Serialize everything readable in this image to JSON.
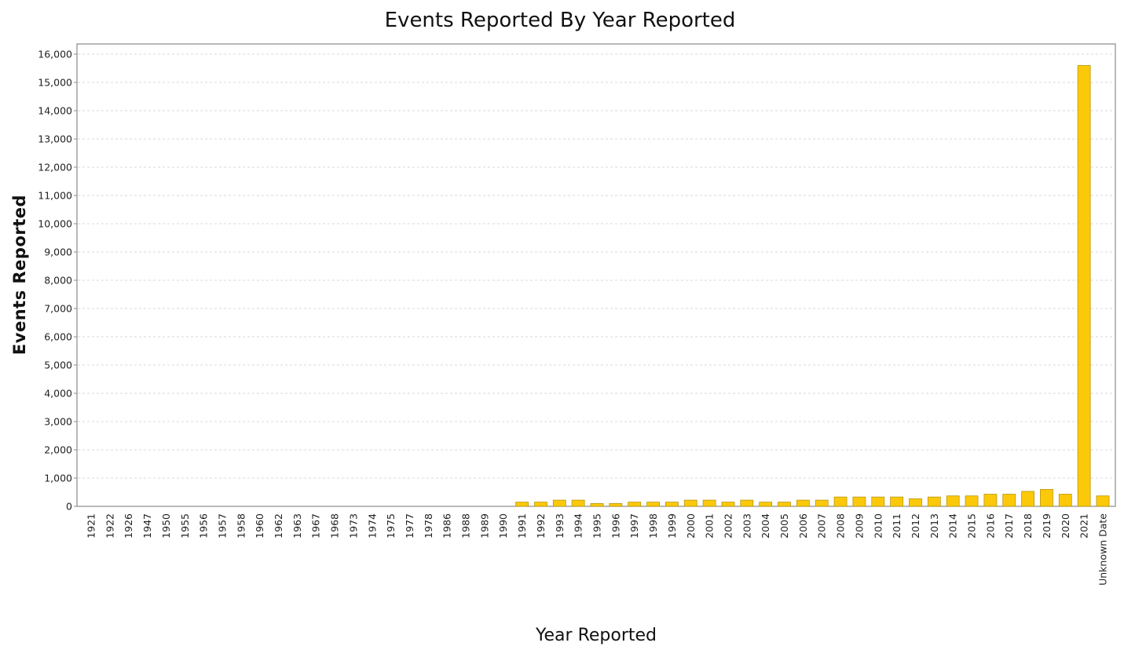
{
  "chart_data": {
    "type": "bar",
    "title": "Events Reported By Year Reported",
    "xlabel": "Year Reported",
    "ylabel": "Events Reported",
    "ylim": [
      0,
      16000
    ],
    "y_ticks": [
      "0",
      "1,000",
      "2,000",
      "3,000",
      "4,000",
      "5,000",
      "6,000",
      "7,000",
      "8,000",
      "9,000",
      "10,000",
      "11,000",
      "12,000",
      "13,000",
      "14,000",
      "15,000",
      "16,000"
    ],
    "grid": "horizontal-dashed",
    "legend": "none",
    "bar_color": "#fcc90a",
    "categories": [
      "1921",
      "1922",
      "1926",
      "1947",
      "1950",
      "1955",
      "1956",
      "1957",
      "1958",
      "1960",
      "1962",
      "1963",
      "1967",
      "1968",
      "1973",
      "1974",
      "1975",
      "1977",
      "1978",
      "1986",
      "1988",
      "1989",
      "1990",
      "1991",
      "1992",
      "1993",
      "1994",
      "1995",
      "1996",
      "1997",
      "1998",
      "1999",
      "2000",
      "2001",
      "2002",
      "2003",
      "2004",
      "2005",
      "2006",
      "2007",
      "2008",
      "2009",
      "2010",
      "2011",
      "2012",
      "2013",
      "2014",
      "2015",
      "2016",
      "2017",
      "2018",
      "2019",
      "2020",
      "2021",
      "Unknown Date"
    ],
    "values": [
      1,
      1,
      1,
      1,
      1,
      1,
      1,
      1,
      1,
      1,
      1,
      1,
      1,
      1,
      1,
      1,
      1,
      1,
      1,
      1,
      1,
      1,
      1,
      150,
      150,
      220,
      220,
      100,
      100,
      150,
      150,
      150,
      220,
      220,
      150,
      220,
      150,
      150,
      220,
      220,
      330,
      330,
      330,
      330,
      270,
      330,
      370,
      370,
      430,
      430,
      530,
      600,
      430,
      15600,
      370
    ]
  }
}
